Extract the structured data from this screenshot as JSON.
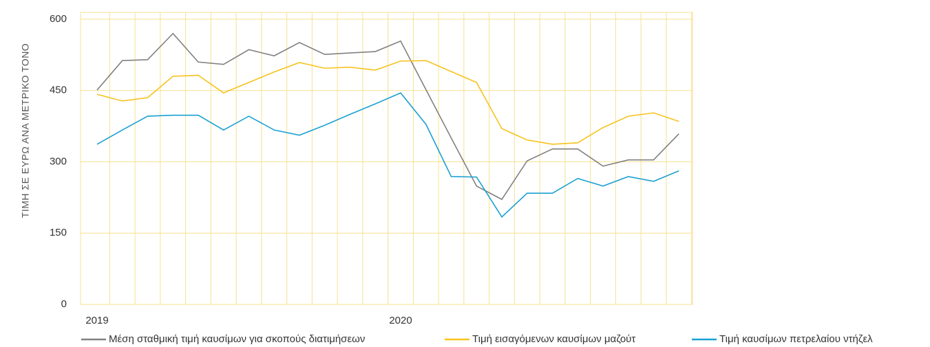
{
  "chart_data": {
    "type": "line",
    "y_axis_label": "ΤΙΜΗ ΣΕ ΕΥΡΩ ΑΝΑ ΜΕΤΡΙΚΟ ΤΟΝΟ",
    "categories": [
      "2019",
      null,
      null,
      null,
      null,
      null,
      null,
      null,
      null,
      null,
      null,
      null,
      "2020",
      null,
      null,
      null,
      null,
      null,
      null,
      null,
      null,
      null,
      null,
      null
    ],
    "series": [
      {
        "name": "Μέση σταθμική τιμή καυσίμων για σκοπούς διατιμήσεων",
        "color": "#808080",
        "values": [
          451,
          513,
          515,
          570,
          510,
          505,
          536,
          523,
          551,
          526,
          529,
          532,
          554,
          452,
          350,
          249,
          221,
          302,
          327,
          327,
          291,
          304,
          304,
          359
        ]
      },
      {
        "name": "Τιμή εισαγόμενων καυσίμων μαζούτ",
        "color": "#f7c21c",
        "values": [
          442,
          428,
          435,
          480,
          482,
          445,
          467,
          489,
          509,
          497,
          499,
          493,
          512,
          513,
          490,
          467,
          370,
          346,
          337,
          340,
          372,
          396,
          403,
          385
        ]
      },
      {
        "name": "Τιμή καυσίμων πετρελαίου ντήζελ",
        "color": "#1aa0d2",
        "values": [
          337,
          367,
          396,
          398,
          398,
          367,
          396,
          367,
          356,
          377,
          400,
          422,
          445,
          379,
          269,
          268,
          184,
          234,
          234,
          265,
          249,
          269,
          259,
          281
        ]
      }
    ],
    "ylim": [
      0,
      600
    ],
    "yticks": [
      0,
      150,
      300,
      450,
      600
    ],
    "grid": true
  }
}
